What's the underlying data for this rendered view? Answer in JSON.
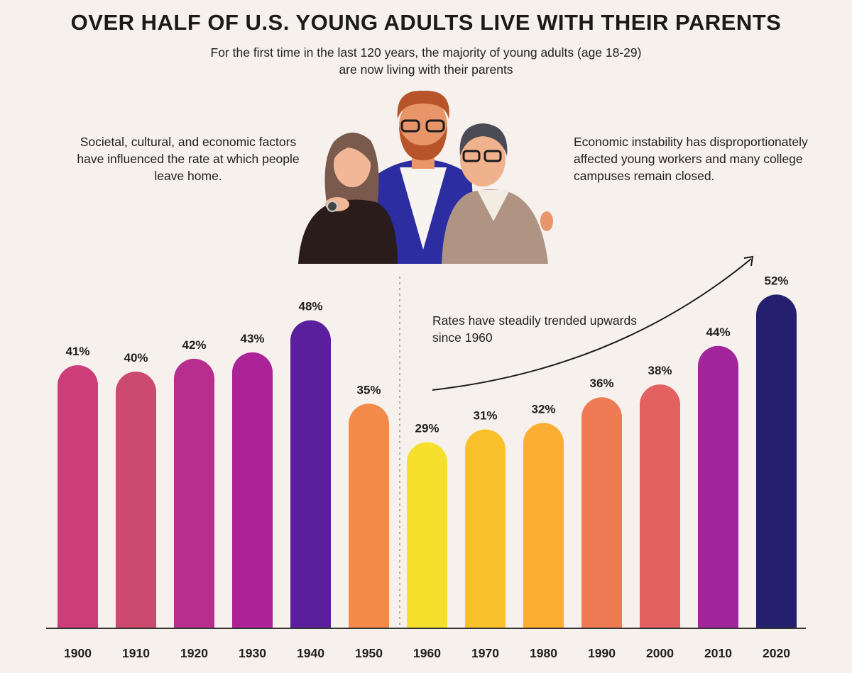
{
  "header": {
    "title": "OVER HALF OF U.S. YOUNG ADULTS LIVE WITH THEIR PARENTS",
    "subtitle_line1": "For the first time in the last 120 years, the majority of young adults (age 18-29)",
    "subtitle_line2": "are now living with their parents"
  },
  "notes": {
    "left": "Societal, cultural, and economic factors have influenced the rate at which people leave home.",
    "right": "Economic instability has disproportionately affected young workers and many college campuses remain closed.",
    "trend": "Rates have steadily trended upwards since 1960"
  },
  "illustration": {
    "name": "family-illustration",
    "description_icon": "three-people-embracing"
  },
  "chart_data": {
    "type": "bar",
    "categories": [
      "1900",
      "1910",
      "1920",
      "1930",
      "1940",
      "1950",
      "1960",
      "1970",
      "1980",
      "1990",
      "2000",
      "2010",
      "2020"
    ],
    "values": [
      41,
      40,
      42,
      43,
      48,
      35,
      29,
      31,
      32,
      36,
      38,
      44,
      52
    ],
    "value_labels": [
      "41%",
      "40%",
      "42%",
      "43%",
      "48%",
      "35%",
      "29%",
      "31%",
      "32%",
      "36%",
      "38%",
      "44%",
      "52%"
    ],
    "colors": [
      "#cc3d79",
      "#cc4a6d",
      "#b72e8e",
      "#ab2397",
      "#5b1f9e",
      "#f28a49",
      "#f7e02c",
      "#fbc12d",
      "#fbae31",
      "#ee7b53",
      "#e26161",
      "#a3259c",
      "#24206e"
    ],
    "title": "",
    "xlabel": "",
    "ylabel": "",
    "ylim": [
      0,
      55
    ],
    "grid": false,
    "divider_after": "1950",
    "trend_arrow_from": "1960",
    "trend_arrow_to": "2020"
  }
}
